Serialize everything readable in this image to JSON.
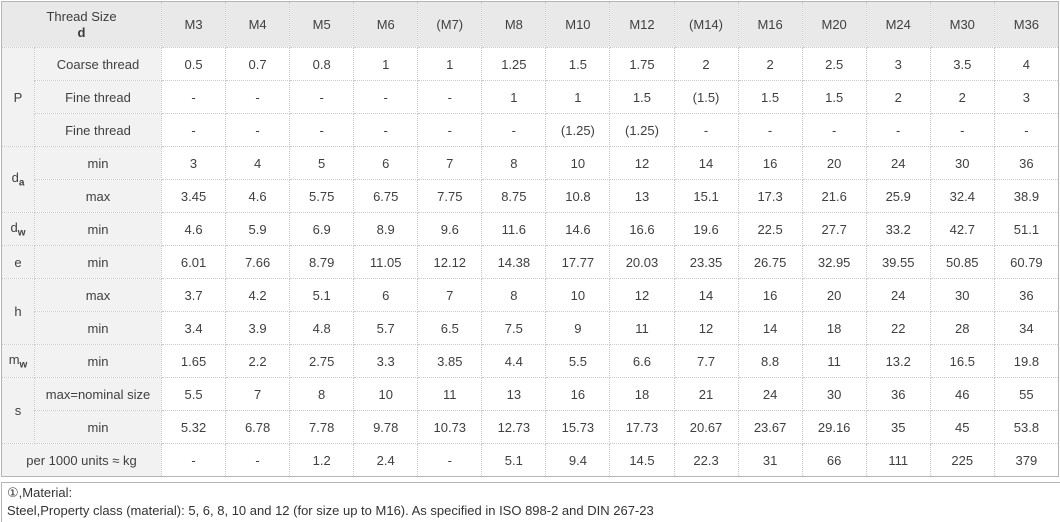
{
  "table": {
    "corner": {
      "line1": "Thread Size",
      "line2": "d"
    },
    "sizes": [
      "M3",
      "M4",
      "M5",
      "M6",
      "(M7)",
      "M8",
      "M10",
      "M12",
      "(M14)",
      "M16",
      "M20",
      "M24",
      "M30",
      "M36"
    ],
    "groups": [
      {
        "label": "P",
        "sub": "",
        "rows": [
          {
            "label": "Coarse thread",
            "values": [
              "0.5",
              "0.7",
              "0.8",
              "1",
              "1",
              "1.25",
              "1.5",
              "1.75",
              "2",
              "2",
              "2.5",
              "3",
              "3.5",
              "4"
            ]
          },
          {
            "label": "Fine thread",
            "values": [
              "-",
              "-",
              "-",
              "-",
              "-",
              "1",
              "1",
              "1.5",
              "(1.5)",
              "1.5",
              "1.5",
              "2",
              "2",
              "3"
            ]
          },
          {
            "label": "Fine thread",
            "values": [
              "-",
              "-",
              "-",
              "-",
              "-",
              "-",
              "(1.25)",
              "(1.25)",
              "-",
              "-",
              "-",
              "-",
              "-",
              "-"
            ]
          }
        ]
      },
      {
        "label": "d",
        "sub": "a",
        "rows": [
          {
            "label": "min",
            "values": [
              "3",
              "4",
              "5",
              "6",
              "7",
              "8",
              "10",
              "12",
              "14",
              "16",
              "20",
              "24",
              "30",
              "36"
            ]
          },
          {
            "label": "max",
            "values": [
              "3.45",
              "4.6",
              "5.75",
              "6.75",
              "7.75",
              "8.75",
              "10.8",
              "13",
              "15.1",
              "17.3",
              "21.6",
              "25.9",
              "32.4",
              "38.9"
            ]
          }
        ]
      },
      {
        "label": "d",
        "sub": "w",
        "rows": [
          {
            "label": "min",
            "values": [
              "4.6",
              "5.9",
              "6.9",
              "8.9",
              "9.6",
              "11.6",
              "14.6",
              "16.6",
              "19.6",
              "22.5",
              "27.7",
              "33.2",
              "42.7",
              "51.1"
            ]
          }
        ]
      },
      {
        "label": "e",
        "sub": "",
        "rows": [
          {
            "label": "min",
            "values": [
              "6.01",
              "7.66",
              "8.79",
              "11.05",
              "12.12",
              "14.38",
              "17.77",
              "20.03",
              "23.35",
              "26.75",
              "32.95",
              "39.55",
              "50.85",
              "60.79"
            ]
          }
        ]
      },
      {
        "label": "h",
        "sub": "",
        "rows": [
          {
            "label": "max",
            "values": [
              "3.7",
              "4.2",
              "5.1",
              "6",
              "7",
              "8",
              "10",
              "12",
              "14",
              "16",
              "20",
              "24",
              "30",
              "36"
            ]
          },
          {
            "label": "min",
            "values": [
              "3.4",
              "3.9",
              "4.8",
              "5.7",
              "6.5",
              "7.5",
              "9",
              "11",
              "12",
              "14",
              "18",
              "22",
              "28",
              "34"
            ]
          }
        ]
      },
      {
        "label": "m",
        "sub": "w",
        "rows": [
          {
            "label": "min",
            "values": [
              "1.65",
              "2.2",
              "2.75",
              "3.3",
              "3.85",
              "4.4",
              "5.5",
              "6.6",
              "7.7",
              "8.8",
              "11",
              "13.2",
              "16.5",
              "19.8"
            ]
          }
        ]
      },
      {
        "label": "s",
        "sub": "",
        "rows": [
          {
            "label": "max=nominal size",
            "values": [
              "5.5",
              "7",
              "8",
              "10",
              "11",
              "13",
              "16",
              "18",
              "21",
              "24",
              "30",
              "36",
              "46",
              "55"
            ]
          },
          {
            "label": "min",
            "values": [
              "5.32",
              "6.78",
              "7.78",
              "9.78",
              "10.73",
              "12.73",
              "15.73",
              "17.73",
              "20.67",
              "23.67",
              "29.16",
              "35",
              "45",
              "53.8"
            ]
          }
        ]
      }
    ],
    "weight_row": {
      "label": "per 1000 units ≈ kg",
      "values": [
        "-",
        "-",
        "1.2",
        "2.4",
        "-",
        "5.1",
        "9.4",
        "14.5",
        "22.3",
        "31",
        "66",
        "111",
        "225",
        "379"
      ]
    },
    "colors": {
      "accent_blue": "#1569b0",
      "header_bg": "#e9e9e9",
      "label_bg": "#f2f2f2",
      "body_text": "#404040"
    }
  },
  "footnote": {
    "line1": "①,Material:",
    "line2": "Steel,Property class (material): 5, 6, 8, 10 and 12 (for size up to M16). As specified in ISO 898-2 and DIN 267-23"
  }
}
